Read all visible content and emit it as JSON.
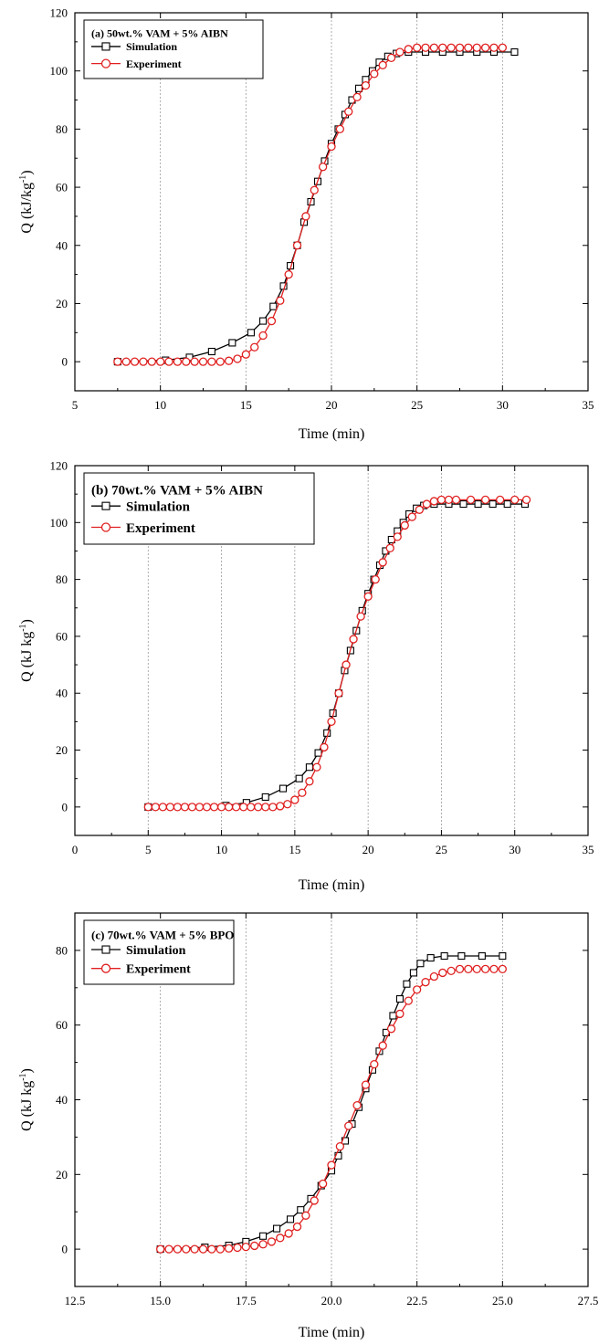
{
  "chart_data": [
    {
      "type": "line",
      "title": "(a) 50wt.% VAM + 5% AIBN",
      "xlabel": "Time (min)",
      "ylabel": "Q (kJ/kg",
      "ylabel_sup": "-1",
      "ylabel_end": ")",
      "xlim": [
        5,
        35
      ],
      "ylim": [
        -10,
        120
      ],
      "xticks": [
        5,
        10,
        15,
        20,
        25,
        30,
        35
      ],
      "xtick_labels": [
        "5",
        "10",
        "15",
        "20",
        "25",
        "30",
        "35"
      ],
      "yticks": [
        0,
        20,
        40,
        60,
        80,
        100,
        120
      ],
      "ytick_labels": [
        "0",
        "20",
        "40",
        "60",
        "80",
        "100",
        "120"
      ],
      "grid": "vertical dotted",
      "legend_position": "top-left",
      "series": [
        {
          "name": "Simulation",
          "color": "#000000",
          "marker": "square",
          "x": [
            7.5,
            10.3,
            11.7,
            13.0,
            14.2,
            15.3,
            16.0,
            16.6,
            17.2,
            17.6,
            18.0,
            18.4,
            18.8,
            19.2,
            19.6,
            20.0,
            20.4,
            20.8,
            21.2,
            21.6,
            22.0,
            22.4,
            22.8,
            23.3,
            23.8,
            24.5,
            25.5,
            26.5,
            27.5,
            28.5,
            29.5,
            30.7
          ],
          "y": [
            0,
            0.5,
            1.5,
            3.5,
            6.5,
            10,
            14,
            19,
            26,
            33,
            40,
            48,
            55,
            62,
            69,
            75,
            80,
            85,
            90,
            94,
            97,
            100,
            103,
            105,
            106,
            106.5,
            106.5,
            106.5,
            106.5,
            106.5,
            106.5,
            106.5
          ]
        },
        {
          "name": "Experiment",
          "color": "#e02020",
          "marker": "circle",
          "x": [
            7.5,
            8.0,
            8.5,
            9.0,
            9.5,
            10.0,
            10.5,
            11.0,
            11.5,
            12.0,
            12.5,
            13.0,
            13.5,
            14.0,
            14.5,
            15.0,
            15.5,
            16.0,
            16.5,
            17.0,
            17.5,
            18.0,
            18.5,
            19.0,
            19.5,
            20.0,
            20.5,
            21.0,
            21.5,
            22.0,
            22.5,
            23.0,
            23.5,
            24.0,
            24.5,
            25.0,
            25.5,
            26.0,
            26.5,
            27.0,
            27.5,
            28.0,
            28.5,
            29.0,
            29.5,
            30.0
          ],
          "y": [
            0,
            0,
            0,
            0,
            0,
            0,
            0,
            0,
            0,
            0,
            0,
            0,
            0,
            0.3,
            1,
            2.5,
            5,
            9,
            14,
            21,
            30,
            40,
            50,
            59,
            67,
            74,
            80,
            86,
            91,
            95,
            99,
            102,
            104.5,
            106.5,
            107.5,
            108,
            108,
            108,
            108,
            108,
            108,
            108,
            108,
            108,
            108,
            108
          ]
        }
      ]
    },
    {
      "type": "line",
      "title": "(b) 70wt.% VAM + 5% AIBN",
      "xlabel": "Time (min)",
      "ylabel": "Q (kJ kg",
      "ylabel_sup": "-1",
      "ylabel_end": ")",
      "xlim": [
        0,
        35
      ],
      "ylim": [
        -10,
        120
      ],
      "xticks": [
        0,
        5,
        10,
        15,
        20,
        25,
        30,
        35
      ],
      "xtick_labels": [
        "0",
        "5",
        "10",
        "15",
        "20",
        "25",
        "30",
        "35"
      ],
      "yticks": [
        0,
        20,
        40,
        60,
        80,
        100,
        120
      ],
      "ytick_labels": [
        "0",
        "20",
        "40",
        "60",
        "80",
        "100",
        "120"
      ],
      "grid": "vertical dotted",
      "legend_position": "top-left",
      "series": [
        {
          "name": "Simulation",
          "color": "#000000",
          "marker": "square",
          "x": [
            5.0,
            10.3,
            11.7,
            13.0,
            14.2,
            15.3,
            16.0,
            16.6,
            17.2,
            17.6,
            18.0,
            18.4,
            18.8,
            19.2,
            19.6,
            20.0,
            20.4,
            20.8,
            21.2,
            21.6,
            22.0,
            22.4,
            22.8,
            23.3,
            23.8,
            24.5,
            25.5,
            26.5,
            27.5,
            28.5,
            29.5,
            30.7
          ],
          "y": [
            0,
            0.5,
            1.5,
            3.5,
            6.5,
            10,
            14,
            19,
            26,
            33,
            40,
            48,
            55,
            62,
            69,
            75,
            80,
            85,
            90,
            94,
            97,
            100,
            103,
            105,
            106,
            106.5,
            106.5,
            106.5,
            106.5,
            106.5,
            106.5,
            106.5
          ]
        },
        {
          "name": "Experiment",
          "color": "#e02020",
          "marker": "circle",
          "x": [
            5.0,
            5.5,
            6.0,
            6.5,
            7.0,
            7.5,
            8.0,
            8.5,
            9.0,
            9.5,
            10.0,
            10.5,
            11.0,
            11.5,
            12.0,
            12.5,
            13.0,
            13.5,
            14.0,
            14.5,
            15.0,
            15.5,
            16.0,
            16.5,
            17.0,
            17.5,
            18.0,
            18.5,
            19.0,
            19.5,
            20.0,
            20.5,
            21.0,
            21.5,
            22.0,
            22.5,
            23.0,
            23.5,
            24.0,
            24.5,
            25.0,
            25.5,
            26.0,
            27.0,
            28.0,
            29.0,
            30.0,
            30.8
          ],
          "y": [
            0,
            0,
            0,
            0,
            0,
            0,
            0,
            0,
            0,
            0,
            0,
            0,
            0,
            0,
            0,
            0,
            0,
            0,
            0.3,
            1,
            2.5,
            5,
            9,
            14,
            21,
            30,
            40,
            50,
            59,
            67,
            74,
            80,
            86,
            91,
            95,
            99,
            102,
            104.5,
            106.5,
            107.5,
            108,
            108,
            108,
            108,
            108,
            108,
            108,
            108
          ]
        }
      ]
    },
    {
      "type": "line",
      "title": "(c) 70wt.% VAM + 5% BPO",
      "xlabel": "Time (min)",
      "ylabel": "Q (kJ kg",
      "ylabel_sup": "-1",
      "ylabel_end": ")",
      "xlim": [
        12.5,
        27.5
      ],
      "ylim": [
        -10,
        90
      ],
      "xticks": [
        12.5,
        15.0,
        17.5,
        20.0,
        22.5,
        25.0,
        27.5
      ],
      "xtick_labels": [
        "12.5",
        "15.0",
        "17.5",
        "20.0",
        "22.5",
        "25.0",
        "27.5"
      ],
      "yticks": [
        0,
        20,
        40,
        60,
        80
      ],
      "ytick_labels": [
        "0",
        "20",
        "40",
        "60",
        "80"
      ],
      "grid": "vertical dotted",
      "legend_position": "top-left",
      "series": [
        {
          "name": "Simulation",
          "color": "#000000",
          "marker": "square",
          "x": [
            15.0,
            16.3,
            17.0,
            17.5,
            18.0,
            18.4,
            18.8,
            19.1,
            19.4,
            19.7,
            20.0,
            20.2,
            20.4,
            20.6,
            20.8,
            21.0,
            21.2,
            21.4,
            21.6,
            21.8,
            22.0,
            22.2,
            22.4,
            22.6,
            22.9,
            23.3,
            23.8,
            24.4,
            25.0
          ],
          "y": [
            0,
            0.5,
            1,
            2,
            3.5,
            5.5,
            8,
            10.5,
            13.5,
            17,
            21,
            25,
            29,
            33.5,
            38,
            43,
            48,
            53,
            58,
            62.5,
            67,
            71,
            74,
            76.5,
            78,
            78.5,
            78.5,
            78.5,
            78.5
          ]
        },
        {
          "name": "Experiment",
          "color": "#e02020",
          "marker": "circle",
          "x": [
            15.0,
            15.25,
            15.5,
            15.75,
            16.0,
            16.25,
            16.5,
            16.75,
            17.0,
            17.25,
            17.5,
            17.75,
            18.0,
            18.25,
            18.5,
            18.75,
            19.0,
            19.25,
            19.5,
            19.75,
            20.0,
            20.25,
            20.5,
            20.75,
            21.0,
            21.25,
            21.5,
            21.75,
            22.0,
            22.25,
            22.5,
            22.75,
            23.0,
            23.25,
            23.5,
            23.75,
            24.0,
            24.25,
            24.5,
            24.75,
            25.0
          ],
          "y": [
            0,
            0,
            0,
            0,
            0,
            0,
            0,
            0,
            0.2,
            0.4,
            0.6,
            0.9,
            1.3,
            2,
            3,
            4.2,
            6,
            9,
            13,
            17.5,
            22.5,
            27.5,
            33,
            38.5,
            44,
            49.5,
            54.5,
            59,
            63,
            66.5,
            69.5,
            71.5,
            73,
            74,
            74.5,
            75,
            75,
            75,
            75,
            75,
            75
          ]
        }
      ]
    }
  ]
}
